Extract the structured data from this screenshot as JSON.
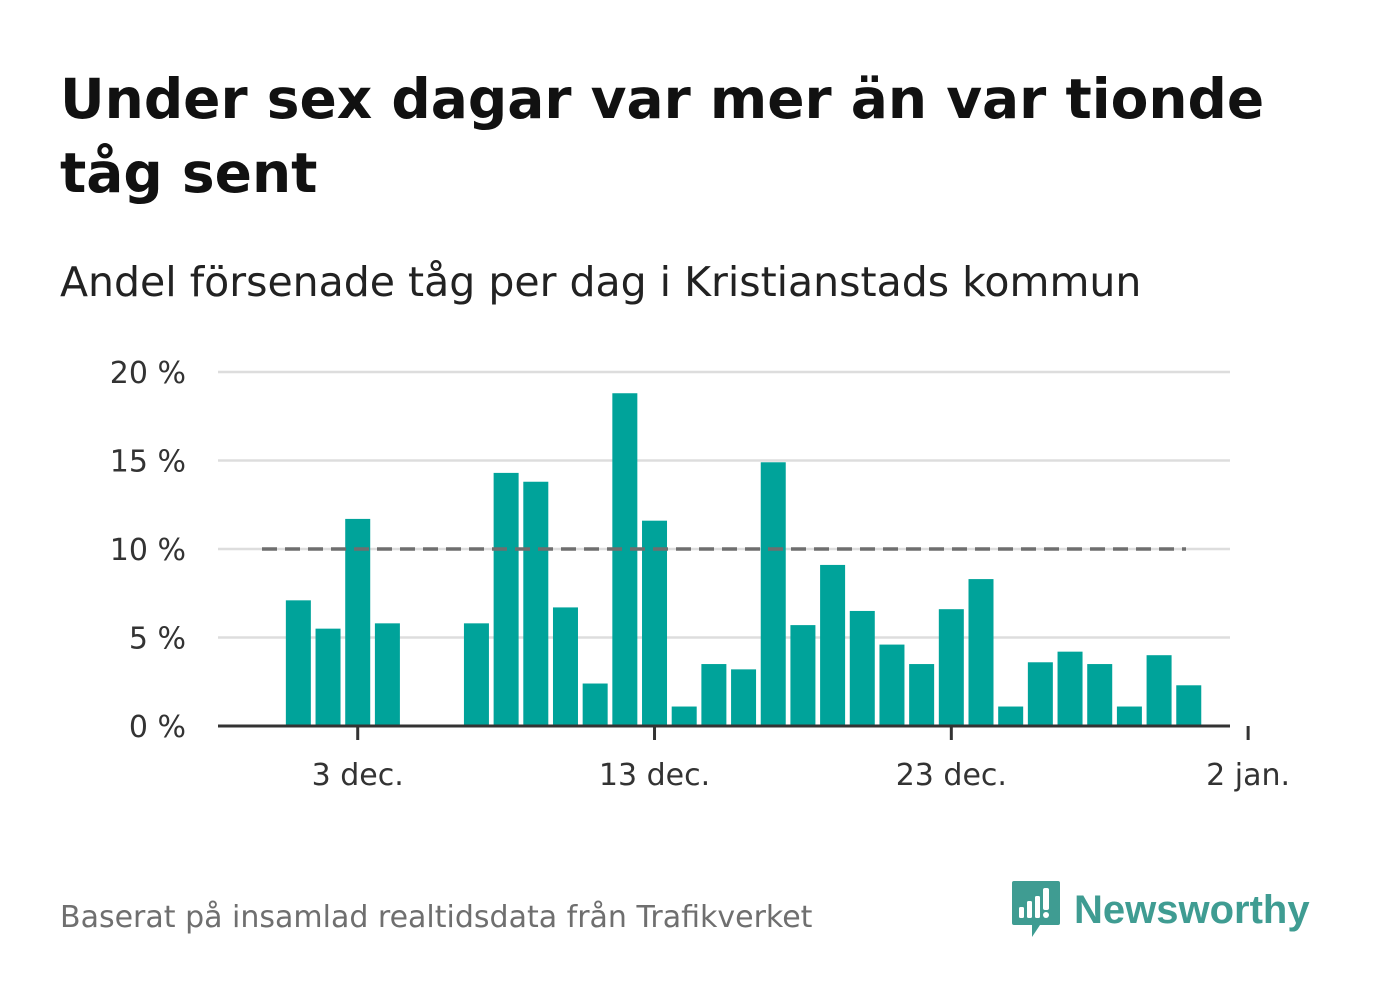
{
  "title": "Under sex dagar var mer än var tionde tåg sent",
  "subtitle": "Andel försenade tåg per dag i Kristianstads kommun",
  "footer": "Baserat på insamlad realtidsdata från Trafikverket",
  "logo_text": "Newsworthy",
  "colors": {
    "bar": "#00a39a",
    "reference_line": "#6e6e6e",
    "grid": "#dddddd",
    "axis": "#333333",
    "logo": "#3f9c92"
  },
  "chart_data": {
    "type": "bar",
    "title": "Under sex dagar var mer än var tionde tåg sent",
    "subtitle": "Andel försenade tåg per dag i Kristianstads kommun",
    "xlabel": "",
    "ylabel": "",
    "y_unit": "%",
    "ylim": [
      0,
      20
    ],
    "y_ticks": [
      {
        "value": 0,
        "label": "0 %"
      },
      {
        "value": 5,
        "label": "5 %"
      },
      {
        "value": 10,
        "label": "10 %"
      },
      {
        "value": 15,
        "label": "15 %"
      },
      {
        "value": 20,
        "label": "20 %"
      }
    ],
    "x_ticks": [
      {
        "date": "2019-12-03",
        "label": "3 dec."
      },
      {
        "date": "2019-12-13",
        "label": "13 dec."
      },
      {
        "date": "2019-12-23",
        "label": "23 dec."
      },
      {
        "date": "2020-01-02",
        "label": "2 jan."
      }
    ],
    "xlim": [
      "2019-11-29",
      "2020-01-02"
    ],
    "reference_line": {
      "value": 10,
      "style": "dashed"
    },
    "grid": true,
    "legend": "none",
    "x": [
      "2019-12-01",
      "2019-12-02",
      "2019-12-03",
      "2019-12-04",
      "2019-12-05",
      "2019-12-06",
      "2019-12-07",
      "2019-12-08",
      "2019-12-09",
      "2019-12-10",
      "2019-12-11",
      "2019-12-12",
      "2019-12-13",
      "2019-12-14",
      "2019-12-15",
      "2019-12-16",
      "2019-12-17",
      "2019-12-18",
      "2019-12-19",
      "2019-12-20",
      "2019-12-21",
      "2019-12-22",
      "2019-12-23",
      "2019-12-24",
      "2019-12-25",
      "2019-12-26",
      "2019-12-27",
      "2019-12-28",
      "2019-12-29",
      "2019-12-30",
      "2019-12-31",
      "2020-01-01"
    ],
    "values": [
      7.1,
      5.5,
      11.7,
      5.8,
      null,
      null,
      5.8,
      14.3,
      13.8,
      6.7,
      2.4,
      18.8,
      11.6,
      1.1,
      3.5,
      3.2,
      14.9,
      5.7,
      9.1,
      6.5,
      4.6,
      3.5,
      6.6,
      8.3,
      1.1,
      3.6,
      4.2,
      3.5,
      1.1,
      4.0,
      2.3,
      null
    ]
  }
}
